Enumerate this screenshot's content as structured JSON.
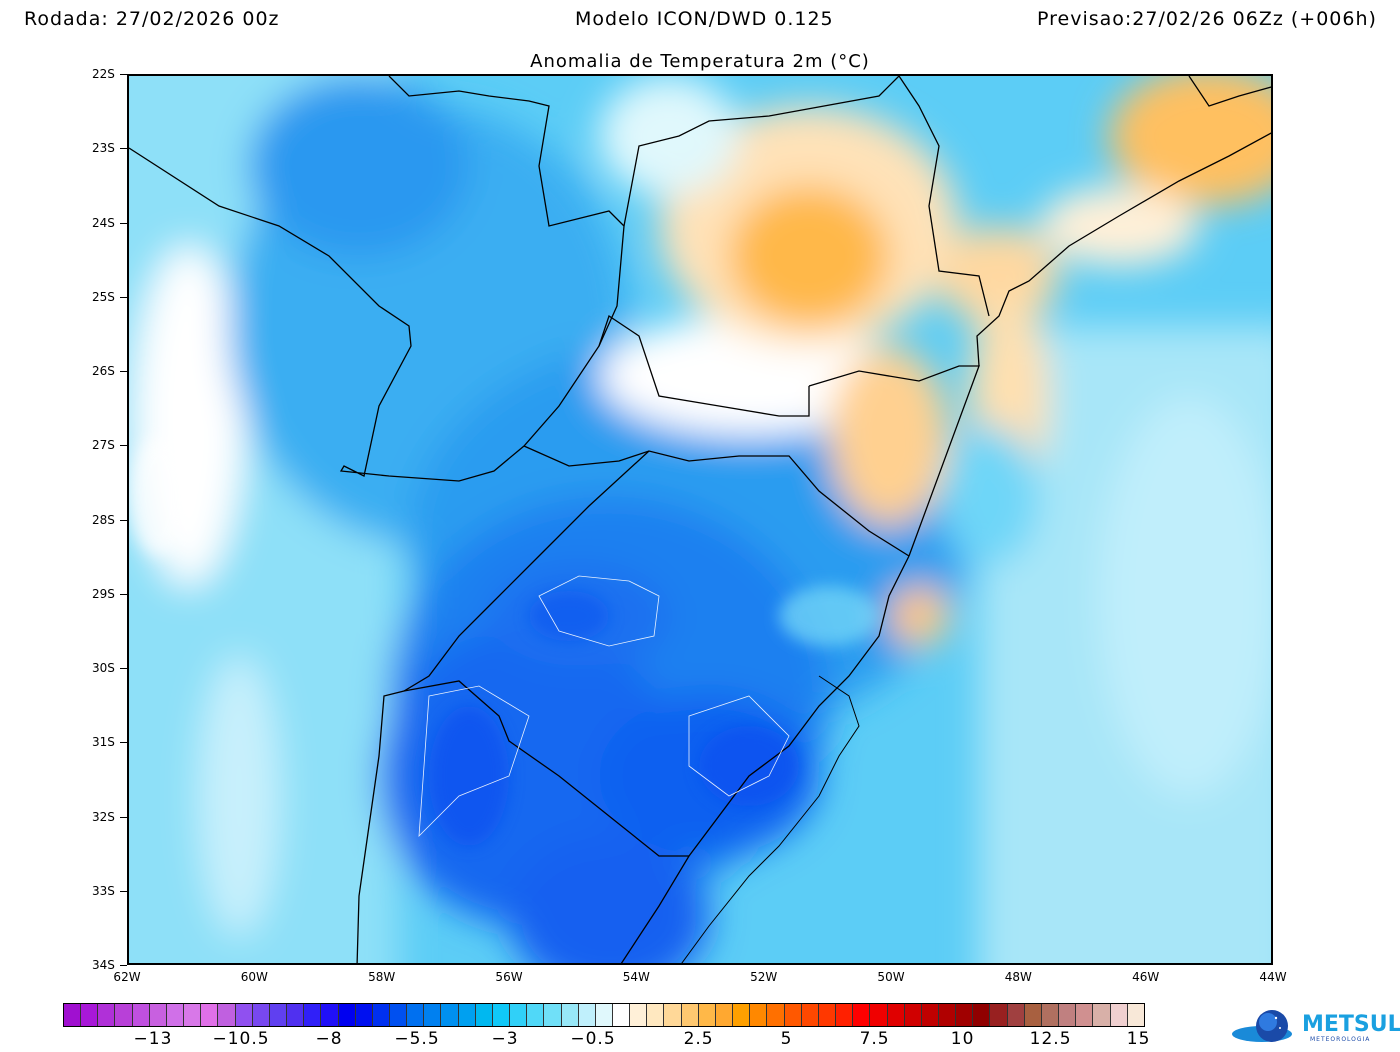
{
  "header": {
    "run": "Rodada: 27/02/2026 00z",
    "model": "Modelo ICON/DWD 0.125",
    "forecast": "Previsao:27/02/26 06Zz (+006h)"
  },
  "title": "Anomalia de Temperatura 2m (°C)",
  "map": {
    "lat_labels": [
      "22S",
      "23S",
      "24S",
      "25S",
      "26S",
      "27S",
      "28S",
      "29S",
      "30S",
      "31S",
      "32S",
      "33S",
      "34S"
    ],
    "lon_labels": [
      "62W",
      "60W",
      "58W",
      "56W",
      "54W",
      "52W",
      "50W",
      "48W",
      "46W",
      "44W"
    ]
  },
  "colorbar": {
    "labels": [
      {
        "text": "−13",
        "value": -13
      },
      {
        "text": "−10.5",
        "value": -10.5
      },
      {
        "text": "−8",
        "value": -8
      },
      {
        "text": "−5.5",
        "value": -5.5
      },
      {
        "text": "−3",
        "value": -3
      },
      {
        "text": "−0.5",
        "value": -0.5
      },
      {
        "text": "2.5",
        "value": 2.5
      },
      {
        "text": "5",
        "value": 5
      },
      {
        "text": "7.5",
        "value": 7.5
      },
      {
        "text": "10",
        "value": 10
      },
      {
        "text": "12.5",
        "value": 12.5
      },
      {
        "text": "15",
        "value": 15
      }
    ],
    "colors": [
      "#a010d0",
      "#a818d8",
      "#b030d8",
      "#b840d8",
      "#c050e0",
      "#c860e0",
      "#d070e8",
      "#d878e8",
      "#e070e8",
      "#c060e0",
      "#9050f0",
      "#7848f0",
      "#6040f0",
      "#5030f0",
      "#3020f8",
      "#2010f8",
      "#0000f0",
      "#0010f0",
      "#0030f0",
      "#0050f0",
      "#0070f0",
      "#0080f0",
      "#0090f0",
      "#00a0f0",
      "#00b8f0",
      "#10c8f8",
      "#30d0f8",
      "#50d8f8",
      "#70e0f8",
      "#98e8f8",
      "#c0f0fc",
      "#e0f8fc",
      "#ffffff",
      "#fff0d8",
      "#ffe8c0",
      "#ffd898",
      "#ffc870",
      "#ffb848",
      "#ffa830",
      "#ffa000",
      "#ff8800",
      "#ff7000",
      "#ff5800",
      "#ff4800",
      "#ff3800",
      "#ff2000",
      "#ff0000",
      "#f00000",
      "#e00000",
      "#d00000",
      "#c00000",
      "#b00000",
      "#a00000",
      "#900000",
      "#982020",
      "#a04040",
      "#a86040",
      "#b07060",
      "#c08080",
      "#d09090",
      "#d8b0a8",
      "#f0d0d0",
      "#f8e8d8"
    ]
  },
  "logo": {
    "name": "METSUL",
    "sub": "METEOROLOGIA"
  }
}
